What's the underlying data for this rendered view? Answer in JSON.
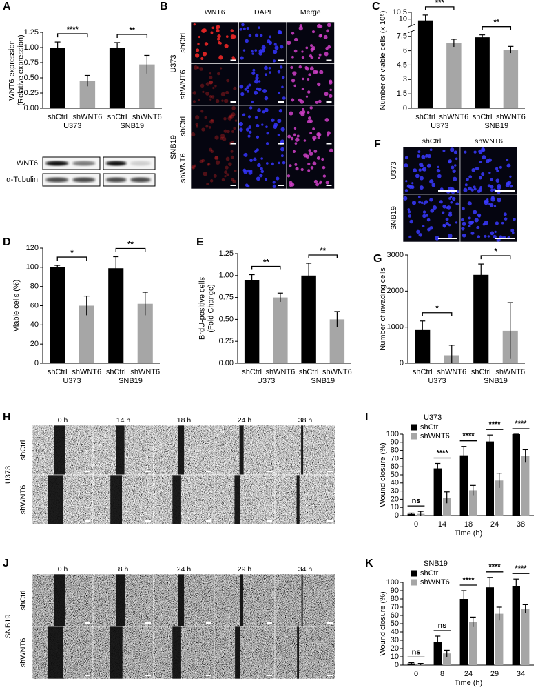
{
  "chart_data": [
    {
      "panel": "A",
      "type": "bar",
      "ylabel": [
        "WNT6 expression",
        "(Relative expression)"
      ],
      "categories": [
        "shCtrl",
        "shWNT6",
        "shCtrl",
        "shWNT6"
      ],
      "groups": [
        "U373",
        "SNB19"
      ],
      "values": [
        1.0,
        0.45,
        1.0,
        0.72
      ],
      "errors": [
        0.09,
        0.09,
        0.08,
        0.15
      ],
      "colors": [
        "#000000",
        "#a6a6a6",
        "#000000",
        "#a6a6a6"
      ],
      "significance": [
        "****",
        "**"
      ],
      "ylim": [
        0,
        1.25
      ],
      "yticks": [
        {
          "value": 0,
          "label": "0.00"
        },
        {
          "value": 0.25,
          "label": "0.25"
        },
        {
          "value": 0.5,
          "label": "0.50"
        },
        {
          "value": 0.75,
          "label": "0.75"
        },
        {
          "value": 1,
          "label": "1.00"
        },
        {
          "value": 1.25,
          "label": "1.25"
        }
      ]
    },
    {
      "panel": "C",
      "type": "bar",
      "ylabel": [
        "Number of viable cells (x 10⁵)"
      ],
      "categories": [
        "shCtrl",
        "shWNT6",
        "shCtrl",
        "shWNT6"
      ],
      "groups": [
        "U373",
        "SNB19"
      ],
      "values": [
        9.9,
        6.8,
        7.4,
        6.1
      ],
      "errors": [
        0.4,
        0.4,
        0.25,
        0.35
      ],
      "colors": [
        "#000000",
        "#a6a6a6",
        "#000000",
        "#a6a6a6"
      ],
      "significance": [
        "***",
        "**"
      ],
      "ylim": [
        0,
        10.5
      ],
      "ybreak": [
        8,
        9.5
      ],
      "yticks": [
        0,
        1.5,
        3,
        4.5,
        6,
        7.5,
        10,
        10.5
      ]
    },
    {
      "panel": "D",
      "type": "bar",
      "ylabel": [
        "Viable cells (%)"
      ],
      "categories": [
        "shCtrl",
        "shWNT6",
        "shCtrl",
        "shWNT6"
      ],
      "groups": [
        "U373",
        "SNB19"
      ],
      "values": [
        100,
        60,
        99,
        62
      ],
      "errors": [
        2,
        10,
        12,
        12
      ],
      "colors": [
        "#000000",
        "#a6a6a6",
        "#000000",
        "#a6a6a6"
      ],
      "significance": [
        "*",
        "**"
      ],
      "ylim": [
        0,
        120
      ],
      "yticks": [
        0,
        20,
        40,
        60,
        80,
        100,
        120
      ]
    },
    {
      "panel": "E",
      "type": "bar",
      "ylabel": [
        "BrdU-positive cells",
        "(Fold Change)"
      ],
      "categories": [
        "shCtrl",
        "shWNT6",
        "shCtrl",
        "shWNT6"
      ],
      "groups": [
        "U373",
        "SNB19"
      ],
      "values": [
        0.95,
        0.75,
        1.0,
        0.5
      ],
      "errors": [
        0.06,
        0.05,
        0.14,
        0.09
      ],
      "colors": [
        "#000000",
        "#a6a6a6",
        "#000000",
        "#a6a6a6"
      ],
      "significance": [
        "**",
        "**"
      ],
      "ylim": [
        0,
        1.25
      ],
      "yticks": [
        {
          "value": 0,
          "label": "0.00"
        },
        {
          "value": 0.25,
          "label": "0.25"
        },
        {
          "value": 0.5,
          "label": "0.50"
        },
        {
          "value": 0.75,
          "label": "0.75"
        },
        {
          "value": 1,
          "label": "1.00"
        },
        {
          "value": 1.25,
          "label": "1.25"
        }
      ]
    },
    {
      "panel": "G",
      "type": "bar",
      "ylabel": [
        "Number of invading cells"
      ],
      "categories": [
        "shCtrl",
        "shWNT6",
        "shCtrl",
        "shWNT6"
      ],
      "groups": [
        "U373",
        "SNB19"
      ],
      "values": [
        920,
        220,
        2450,
        900
      ],
      "errors": [
        250,
        280,
        300,
        780
      ],
      "colors": [
        "#000000",
        "#a6a6a6",
        "#000000",
        "#a6a6a6"
      ],
      "significance": [
        "*",
        "*"
      ],
      "ylim": [
        0,
        3000
      ],
      "yticks": [
        0,
        1000,
        2000,
        3000
      ]
    },
    {
      "panel": "I",
      "type": "grouped_bar",
      "title": "U373",
      "ylabel": [
        "Wound closure (%)"
      ],
      "xlabel": "Time (h)",
      "categories": [
        "0",
        "14",
        "18",
        "24",
        "38"
      ],
      "series": [
        {
          "name": "shCtrl",
          "color": "#000000",
          "values": [
            2,
            58,
            74,
            91,
            100
          ],
          "errors": [
            1,
            6,
            11,
            8,
            0
          ]
        },
        {
          "name": "shWNT6",
          "color": "#a6a6a6",
          "values": [
            2,
            22,
            31,
            43,
            73
          ],
          "errors": [
            3,
            7,
            6,
            9,
            8
          ]
        }
      ],
      "significance": [
        "ns",
        "****",
        "****",
        "****",
        "****"
      ],
      "ylim": [
        0,
        100
      ],
      "yticks": [
        0,
        10,
        20,
        30,
        40,
        50,
        60,
        70,
        80,
        90,
        100
      ]
    },
    {
      "panel": "K",
      "type": "grouped_bar",
      "title": "SNB19",
      "ylabel": [
        "Wound closure (%)"
      ],
      "xlabel": "Time (h)",
      "categories": [
        "0",
        "8",
        "24",
        "29",
        "34"
      ],
      "series": [
        {
          "name": "shCtrl",
          "color": "#000000",
          "values": [
            2,
            28,
            80,
            94,
            95
          ],
          "errors": [
            1,
            7,
            10,
            12,
            9
          ]
        },
        {
          "name": "shWNT6",
          "color": "#a6a6a6",
          "values": [
            1,
            14,
            52,
            62,
            68
          ],
          "errors": [
            1,
            4,
            6,
            8,
            5
          ]
        }
      ],
      "significance": [
        "ns",
        "ns",
        "****",
        "****",
        "****"
      ],
      "ylim": [
        0,
        100
      ],
      "yticks": [
        0,
        10,
        20,
        30,
        40,
        50,
        60,
        70,
        80,
        90,
        100
      ]
    }
  ],
  "blot": {
    "labels": [
      "WNT6",
      "α-Tubulin"
    ]
  },
  "images": [
    {
      "panel": "B",
      "col_labels": [
        "WNT6",
        "DAPI",
        "Merge"
      ],
      "row_groups": [
        {
          "name": "U373",
          "rows": [
            "shCtrl",
            "shWNT6"
          ]
        },
        {
          "name": "SNB19",
          "rows": [
            "shCtrl",
            "shWNT6"
          ]
        }
      ]
    },
    {
      "panel": "F",
      "col_labels": [
        "shCtrl",
        "shWNT6"
      ],
      "row_groups": [
        {
          "name": "U373",
          "rows": []
        },
        {
          "name": "SNB19",
          "rows": []
        }
      ]
    },
    {
      "panel": "H",
      "col_labels": [
        "0 h",
        "14 h",
        "18 h",
        "24 h",
        "38 h"
      ],
      "row_groups": [
        {
          "name": "U373",
          "rows": [
            "shCtrl",
            "shWNT6"
          ]
        }
      ]
    },
    {
      "panel": "J",
      "col_labels": [
        "0 h",
        "8 h",
        "24 h",
        "29 h",
        "34 h"
      ],
      "row_groups": [
        {
          "name": "SNB19",
          "rows": [
            "shCtrl",
            "shWNT6"
          ]
        }
      ]
    }
  ]
}
